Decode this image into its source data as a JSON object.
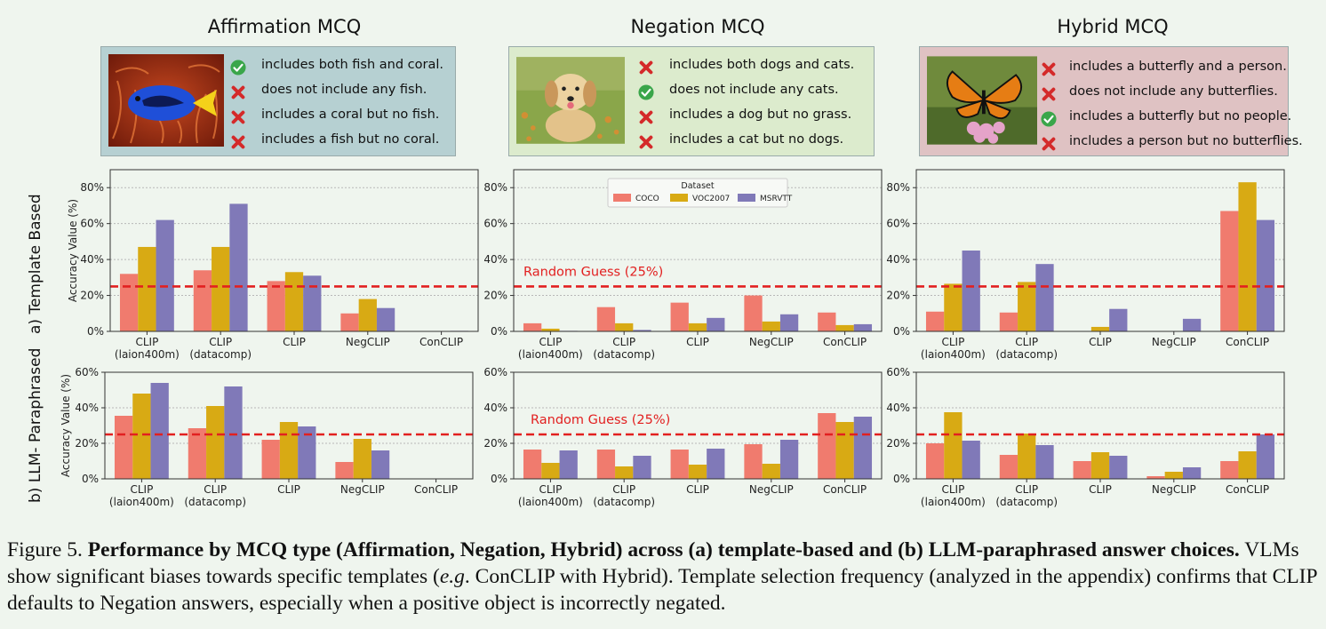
{
  "columns": [
    {
      "title": "Affirmation MCQ",
      "box_bg": "#b6d0d2",
      "image": "fish-image",
      "options": [
        {
          "text": "includes both fish and coral.",
          "correct": true
        },
        {
          "text": "does not include any fish.",
          "correct": false
        },
        {
          "text": "includes a coral but no fish.",
          "correct": false
        },
        {
          "text": "includes a fish but no coral.",
          "correct": false
        }
      ]
    },
    {
      "title": "Negation MCQ",
      "box_bg": "#dcebcd",
      "image": "dog-image",
      "options": [
        {
          "text": "includes both dogs and cats.",
          "correct": false
        },
        {
          "text": "does not include any cats.",
          "correct": true
        },
        {
          "text": "includes a dog but no grass.",
          "correct": false
        },
        {
          "text": "includes a cat but no dogs.",
          "correct": false
        }
      ]
    },
    {
      "title": "Hybrid MCQ",
      "box_bg": "#dfc2c3",
      "image": "butterfly-image",
      "options": [
        {
          "text": "includes a butterfly and a person.",
          "correct": false
        },
        {
          "text": "does not include any butterflies.",
          "correct": false
        },
        {
          "text": "includes a butterfly but no people.",
          "correct": true
        },
        {
          "text": "includes a person but no butterflies.",
          "correct": false
        }
      ]
    }
  ],
  "row_labels": [
    "a) Template Based",
    "b) LLM- Paraphrased"
  ],
  "ylabel": "Accuracy Value (%)",
  "colors": {
    "COCO": "#f07b6e",
    "VOC2007": "#d8aa14",
    "MSRVTT": "#8079b8",
    "guess": "#e22020"
  },
  "legend": {
    "title": "Dataset",
    "entries": [
      "COCO",
      "VOC2007",
      "MSRVTT"
    ]
  },
  "guess_label": "Random Guess (25%)",
  "chart_data": [
    {
      "type": "bar",
      "row": "template",
      "column": "Affirmation MCQ",
      "categories": [
        "CLIP\n(laion400m)",
        "CLIP\n(datacomp)",
        "CLIP",
        "NegCLIP",
        "ConCLIP"
      ],
      "series": [
        {
          "name": "COCO",
          "values": [
            32,
            34,
            28,
            10,
            0
          ]
        },
        {
          "name": "VOC2007",
          "values": [
            47,
            47,
            33,
            18,
            0
          ]
        },
        {
          "name": "MSRVTT",
          "values": [
            62,
            71,
            31,
            13,
            0.3
          ]
        }
      ],
      "ylim": [
        0,
        90
      ],
      "yticks": [
        0,
        20,
        40,
        60,
        80
      ],
      "guess": 25,
      "show_guess_label": false,
      "show_legend": false
    },
    {
      "type": "bar",
      "row": "template",
      "column": "Negation MCQ",
      "categories": [
        "CLIP\n(laion400m)",
        "CLIP\n(datacomp)",
        "CLIP",
        "NegCLIP",
        "ConCLIP"
      ],
      "series": [
        {
          "name": "COCO",
          "values": [
            4.5,
            13.5,
            16,
            20,
            10.5
          ]
        },
        {
          "name": "VOC2007",
          "values": [
            1.5,
            4.5,
            4.5,
            5.5,
            3.5
          ]
        },
        {
          "name": "MSRVTT",
          "values": [
            0.3,
            0.8,
            7.5,
            9.5,
            4
          ]
        }
      ],
      "ylim": [
        0,
        90
      ],
      "yticks": [
        0,
        20,
        40,
        60,
        80
      ],
      "guess": 25,
      "show_guess_label": true,
      "show_legend": true
    },
    {
      "type": "bar",
      "row": "template",
      "column": "Hybrid MCQ",
      "categories": [
        "CLIP\n(laion400m)",
        "CLIP\n(datacomp)",
        "CLIP",
        "NegCLIP",
        "ConCLIP"
      ],
      "series": [
        {
          "name": "COCO",
          "values": [
            11,
            10.5,
            0,
            0,
            67
          ]
        },
        {
          "name": "VOC2007",
          "values": [
            26.5,
            27.5,
            2.5,
            0,
            83
          ]
        },
        {
          "name": "MSRVTT",
          "values": [
            45,
            37.5,
            12.5,
            7,
            62
          ]
        }
      ],
      "ylim": [
        0,
        90
      ],
      "yticks": [
        0,
        20,
        40,
        60,
        80
      ],
      "guess": 25,
      "show_guess_label": false,
      "show_legend": false
    },
    {
      "type": "bar",
      "row": "llm",
      "column": "Affirmation MCQ",
      "categories": [
        "CLIP\n(laion400m)",
        "CLIP\n(datacomp)",
        "CLIP",
        "NegCLIP",
        "ConCLIP"
      ],
      "series": [
        {
          "name": "COCO",
          "values": [
            35.5,
            28.5,
            22,
            9.5,
            0
          ]
        },
        {
          "name": "VOC2007",
          "values": [
            48,
            41,
            32,
            22.5,
            0
          ]
        },
        {
          "name": "MSRVTT",
          "values": [
            54,
            52,
            29.5,
            16,
            0
          ]
        }
      ],
      "ylim": [
        0,
        60
      ],
      "yticks": [
        0,
        20,
        40,
        60
      ],
      "guess": 25,
      "show_guess_label": false,
      "show_legend": false
    },
    {
      "type": "bar",
      "row": "llm",
      "column": "Negation MCQ",
      "categories": [
        "CLIP\n(laion400m)",
        "CLIP\n(datacomp)",
        "CLIP",
        "NegCLIP",
        "ConCLIP"
      ],
      "series": [
        {
          "name": "COCO",
          "values": [
            16.5,
            16.5,
            16.5,
            19.5,
            37
          ]
        },
        {
          "name": "VOC2007",
          "values": [
            9,
            7,
            8,
            8.5,
            32
          ]
        },
        {
          "name": "MSRVTT",
          "values": [
            16,
            13,
            17,
            22,
            35
          ]
        }
      ],
      "ylim": [
        0,
        60
      ],
      "yticks": [
        0,
        20,
        40,
        60
      ],
      "guess": 25,
      "show_guess_label": true,
      "show_legend": false
    },
    {
      "type": "bar",
      "row": "llm",
      "column": "Hybrid MCQ",
      "categories": [
        "CLIP\n(laion400m)",
        "CLIP\n(datacomp)",
        "CLIP",
        "NegCLIP",
        "ConCLIP"
      ],
      "series": [
        {
          "name": "COCO",
          "values": [
            20,
            13.5,
            10,
            1.5,
            10
          ]
        },
        {
          "name": "VOC2007",
          "values": [
            37.5,
            25.5,
            15,
            4,
            15.5
          ]
        },
        {
          "name": "MSRVTT",
          "values": [
            21.5,
            19,
            13,
            6.5,
            25
          ]
        }
      ],
      "ylim": [
        0,
        60
      ],
      "yticks": [
        0,
        20,
        40,
        60
      ],
      "guess": 25,
      "show_guess_label": false,
      "show_legend": false
    }
  ],
  "caption": {
    "prefix": "Figure 5. ",
    "bold": "Performance by MCQ type (Affirmation, Negation, Hybrid) across (a) template-based and (b) LLM-paraphrased answer choices.",
    "rest_1": " VLMs show significant biases towards specific templates (",
    "eg": "e.g",
    "rest_2": ". ConCLIP with Hybrid). Template selection frequency (analyzed in the appendix) confirms that CLIP defaults to Negation answers, especially when a positive object is incorrectly negated."
  }
}
